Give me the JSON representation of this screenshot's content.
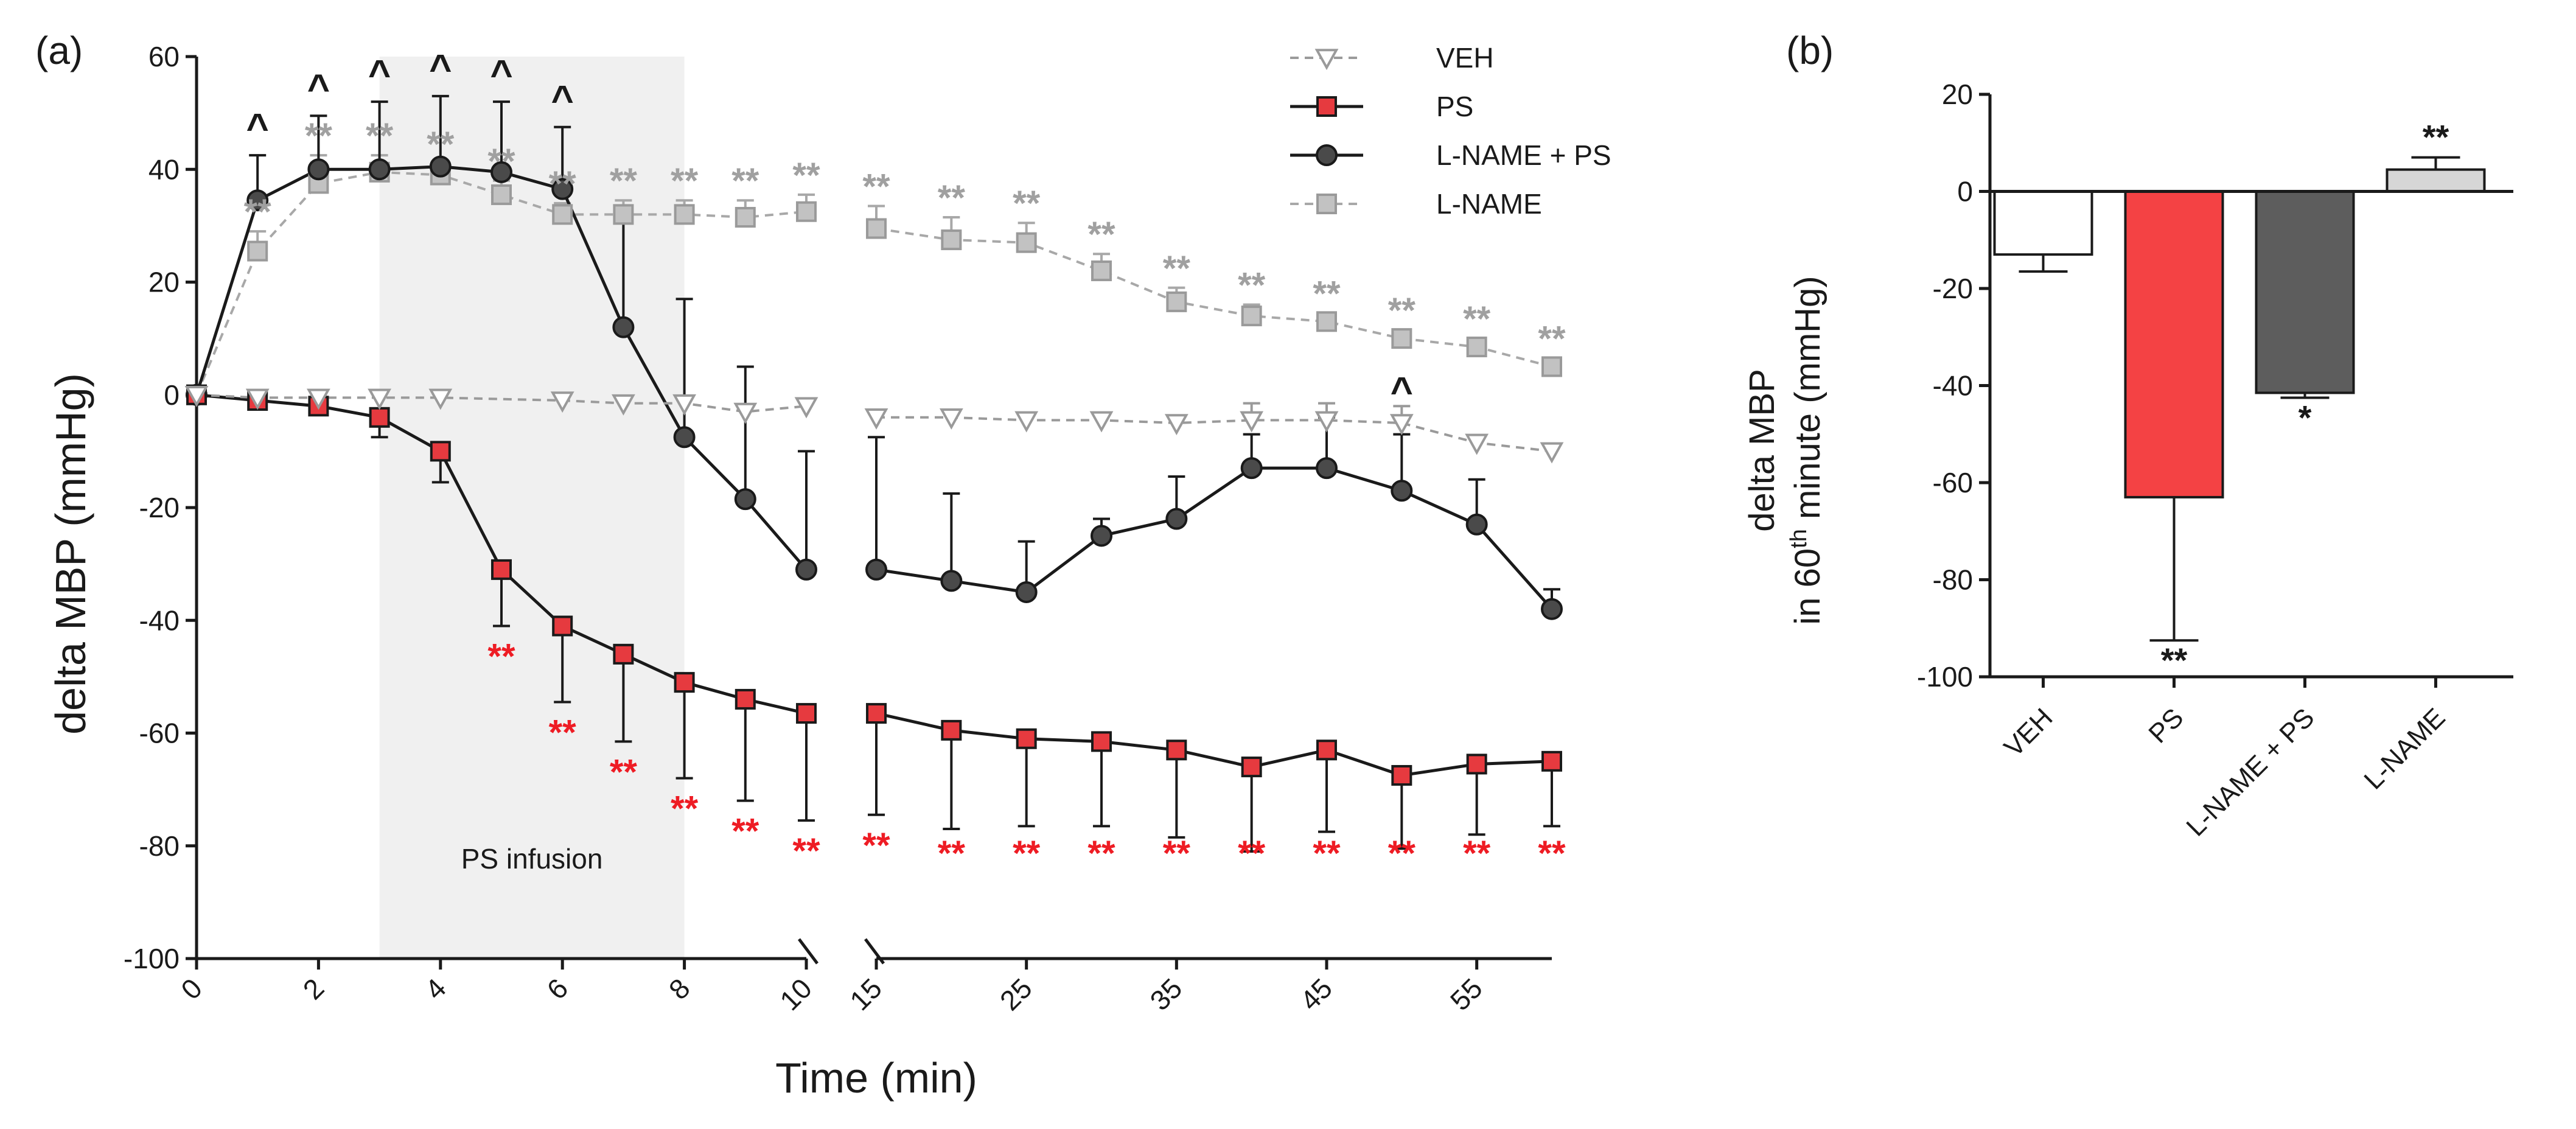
{
  "chart_data": [
    {
      "type": "line",
      "panel_label": "(a)",
      "xlabel": "Time (min)",
      "ylabel": "delta MBP (mmHg)",
      "ylim": [
        -100,
        60
      ],
      "yticks": [
        -100,
        -80,
        -60,
        -40,
        -20,
        0,
        20,
        40,
        60
      ],
      "x_segments": [
        {
          "range": [
            0,
            10
          ],
          "ticks": [
            0,
            2,
            4,
            6,
            8,
            10
          ]
        },
        {
          "range": [
            15,
            60
          ],
          "ticks": [
            15,
            25,
            35,
            45,
            55
          ]
        }
      ],
      "shaded_region": {
        "x_start": 3,
        "x_end": 8,
        "label": "PS infusion"
      },
      "legend_position": "top-right",
      "series": [
        {
          "name": "VEH",
          "marker": "open-triangle-down",
          "color": "#9a9a9a",
          "line": "dashed",
          "x": [
            0,
            1,
            2,
            3,
            4,
            6,
            7,
            8,
            9,
            10,
            15,
            20,
            25,
            30,
            35,
            40,
            45,
            50,
            55,
            60
          ],
          "y": [
            0,
            -0.5,
            -0.5,
            -0.5,
            -0.5,
            -1,
            -1.5,
            -1.5,
            -3,
            -2,
            -4,
            -4,
            -4.5,
            -4.5,
            -5,
            -4.5,
            -4.5,
            -5,
            -8.5,
            -10
          ],
          "err": [
            0,
            0,
            0,
            0,
            0,
            0,
            0,
            0,
            0,
            0,
            0,
            0,
            0,
            0,
            0,
            3,
            3,
            3,
            0,
            0
          ]
        },
        {
          "name": "PS",
          "marker": "square",
          "color": "#e63a3f",
          "line": "solid",
          "x": [
            0,
            1,
            2,
            3,
            4,
            5,
            6,
            7,
            8,
            9,
            10,
            15,
            20,
            25,
            30,
            35,
            40,
            45,
            50,
            55,
            60
          ],
          "y": [
            0,
            -1,
            -2,
            -4,
            -10,
            -31,
            -41,
            -46,
            -51,
            -54,
            -56.5,
            -56.5,
            -59.5,
            -61,
            -61.5,
            -63,
            -66,
            -63,
            -67.5,
            -65.5,
            -65
          ],
          "err": [
            0,
            0,
            0,
            3.5,
            5.5,
            10,
            13.5,
            15.5,
            17,
            18,
            19,
            18,
            17.5,
            15.5,
            15,
            15.5,
            15,
            14.5,
            13,
            12.5,
            11.5
          ]
        },
        {
          "name": "L-NAME + PS",
          "marker": "circle",
          "color": "#4a4a4a",
          "line": "solid",
          "x": [
            0,
            1,
            2,
            3,
            4,
            5,
            6,
            7,
            8,
            9,
            10,
            15,
            20,
            25,
            30,
            35,
            40,
            45,
            50,
            55,
            60
          ],
          "y": [
            0,
            34.5,
            40,
            40,
            40.5,
            39.5,
            36.5,
            12,
            -7.5,
            -18.5,
            -31,
            -31,
            -33,
            -35,
            -25,
            -22,
            -13,
            -13,
            -17,
            -23,
            -38
          ],
          "err": [
            0,
            8,
            9.5,
            12,
            12.5,
            12.5,
            11,
            20,
            24.5,
            23.5,
            21,
            23.5,
            15.5,
            9,
            3,
            7.5,
            6,
            9,
            10,
            8,
            3.5
          ]
        },
        {
          "name": "L-NAME",
          "marker": "square",
          "color": "#c2c2c2",
          "line": "dashed",
          "x": [
            0,
            1,
            2,
            3,
            4,
            5,
            6,
            7,
            8,
            9,
            10,
            15,
            20,
            25,
            30,
            35,
            40,
            45,
            50,
            55,
            60
          ],
          "y": [
            0,
            25.5,
            37.5,
            39.5,
            39,
            35.5,
            32,
            32,
            32,
            31.5,
            32.5,
            29.5,
            27.5,
            27,
            22,
            16.5,
            14,
            13,
            10,
            8.5,
            5
          ],
          "err": [
            0,
            3.5,
            5,
            3,
            2,
            2.5,
            2,
            2.5,
            2.5,
            3,
            3,
            4,
            4,
            3.5,
            3,
            2.5,
            2,
            1.5,
            1.5,
            1.5,
            1.5
          ]
        }
      ],
      "annotations": [
        {
          "text": "**",
          "series": "L-NAME",
          "x": [
            1,
            2,
            3,
            4,
            5,
            6,
            7,
            8,
            9,
            10,
            15,
            20,
            25,
            30,
            35,
            40,
            45,
            50,
            55,
            60
          ],
          "color": "#a0a0a0"
        },
        {
          "text": "**",
          "series": "PS",
          "x": [
            5,
            6,
            7,
            8,
            9,
            10,
            15,
            20,
            25,
            30,
            35,
            40,
            45,
            50,
            55,
            60
          ],
          "color": "#ee1c24"
        },
        {
          "text": "^",
          "series": "L-NAME + PS",
          "x": [
            1,
            2,
            3,
            4,
            5,
            6,
            50
          ],
          "color": "#1a1a1a"
        }
      ]
    },
    {
      "type": "bar",
      "panel_label": "(b)",
      "ylabel_line1": "delta MBP",
      "ylabel_line2_prefix": "in 60",
      "ylabel_line2_sup": "th",
      "ylabel_line2_suffix": " minute (mmHg)",
      "ylim": [
        -100,
        20
      ],
      "yticks": [
        -100,
        -80,
        -60,
        -40,
        -20,
        0,
        20
      ],
      "categories": [
        "VEH",
        "PS",
        "L-NAME + PS",
        "L-NAME"
      ],
      "values": [
        -13,
        -63,
        -41.5,
        4.5
      ],
      "errors": [
        3.5,
        29.5,
        1,
        2.5
      ],
      "colors": [
        "#ffffff",
        "#f44244",
        "#5d5d5d",
        "#d6d6d6"
      ],
      "significance": [
        "",
        "**",
        "*",
        "**"
      ]
    }
  ]
}
